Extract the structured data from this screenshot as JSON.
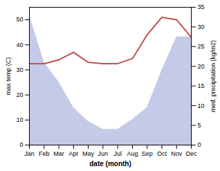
{
  "chart_data": {
    "type": "line",
    "xlabel": "date (month)",
    "ylabel": "max temp (C)",
    "y2label": "med. precipitation (kg/m2)",
    "categories": [
      "Jan",
      "Feb",
      "Mar",
      "Apr",
      "May",
      "Jun",
      "Jul",
      "Aug",
      "Sep",
      "Oct",
      "Nov",
      "Dec"
    ],
    "series": [
      {
        "type": "area",
        "axis": "y2",
        "color": "#c5cae9",
        "values": [
          33.0,
          21.0,
          16.0,
          9.5,
          6.0,
          4.0,
          4.0,
          6.5,
          9.5,
          19.0,
          27.5,
          27.5
        ]
      },
      {
        "type": "line",
        "color": "#c0504d",
        "values": [
          32.5,
          32.5,
          34.0,
          37.0,
          33.0,
          32.5,
          32.5,
          34.5,
          44.0,
          51.0,
          50.0,
          43.0
        ]
      }
    ],
    "ylim": [
      0,
      55
    ],
    "yticks": [
      0,
      10,
      20,
      30,
      40,
      50
    ],
    "y2lim": [
      0,
      35
    ],
    "y2ticks": [
      0,
      5,
      10,
      15,
      20,
      25,
      30,
      35
    ]
  }
}
